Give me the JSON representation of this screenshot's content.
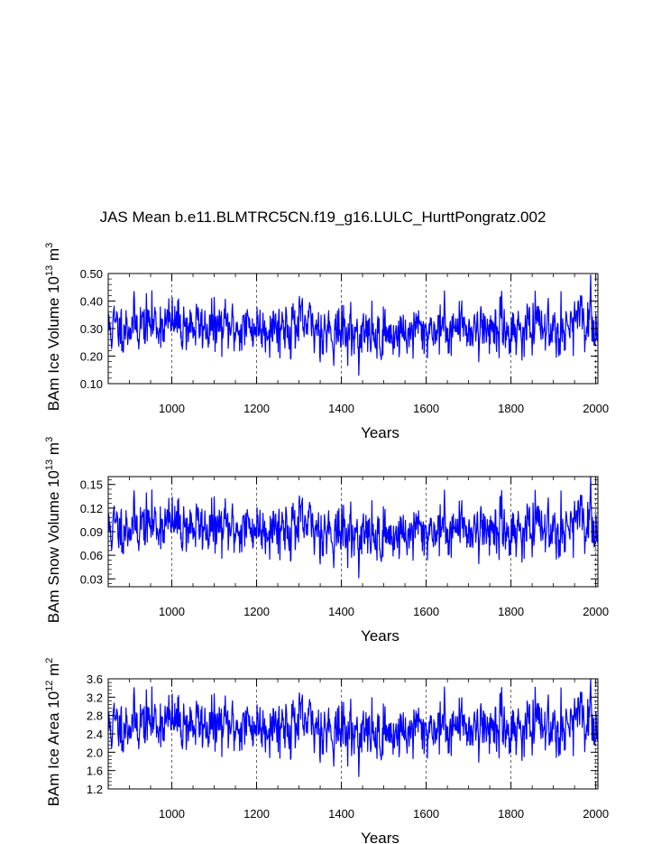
{
  "title": "JAS Mean b.e11.BLMTRC5CN.f19_g16.LULC_HurttPongratz.002",
  "chart_data": [
    {
      "type": "line",
      "ylabel": "BAm Ice Volume 10",
      "ylabel_sup1": "13",
      "ylabel_mid": " m",
      "ylabel_sup2": "3",
      "xlabel": "Years",
      "xlim": [
        850,
        2005
      ],
      "ylim": [
        0.1,
        0.5
      ],
      "xticks": [
        1000,
        1200,
        1400,
        1600,
        1800,
        2000
      ],
      "yticks": [
        0.1,
        0.2,
        0.3,
        0.4,
        0.5
      ],
      "ytick_labels": [
        "0.10",
        "0.20",
        "0.30",
        "0.40",
        "0.50"
      ],
      "grid": "vertical-dashed",
      "color": "#0000ff",
      "series": [
        {
          "x_start": 850,
          "x_end": 2005,
          "mean": 0.3,
          "std": 0.055,
          "values_note_hidden": true
        }
      ]
    },
    {
      "type": "line",
      "ylabel": "BAm Snow Volume 10",
      "ylabel_sup1": "13",
      "ylabel_mid": " m",
      "ylabel_sup2": "3",
      "xlabel": "Years",
      "xlim": [
        850,
        2005
      ],
      "ylim": [
        0.02,
        0.16
      ],
      "xticks": [
        1000,
        1200,
        1400,
        1600,
        1800,
        2000
      ],
      "yticks": [
        0.03,
        0.06,
        0.09,
        0.12,
        0.15
      ],
      "ytick_labels": [
        "0.03",
        "0.06",
        "0.09",
        "0.12",
        "0.15"
      ],
      "grid": "vertical-dashed",
      "color": "#0000ff",
      "series": [
        {
          "x_start": 850,
          "x_end": 2005,
          "mean": 0.093,
          "std": 0.02
        }
      ]
    },
    {
      "type": "line",
      "ylabel": "BAm Ice Area 10",
      "ylabel_sup1": "12",
      "ylabel_mid": " m",
      "ylabel_sup2": "2",
      "xlabel": "Years",
      "xlim": [
        850,
        2005
      ],
      "ylim": [
        1.2,
        3.6
      ],
      "xticks": [
        1000,
        1200,
        1400,
        1600,
        1800,
        2000
      ],
      "yticks": [
        1.2,
        1.6,
        2.0,
        2.4,
        2.8,
        3.2,
        3.6
      ],
      "ytick_labels": [
        "1.2",
        "1.6",
        "2.0",
        "2.4",
        "2.8",
        "3.2",
        "3.6"
      ],
      "grid": "vertical-dashed",
      "color": "#0000ff",
      "series": [
        {
          "x_start": 850,
          "x_end": 2005,
          "mean": 2.55,
          "std": 0.35
        }
      ]
    }
  ]
}
